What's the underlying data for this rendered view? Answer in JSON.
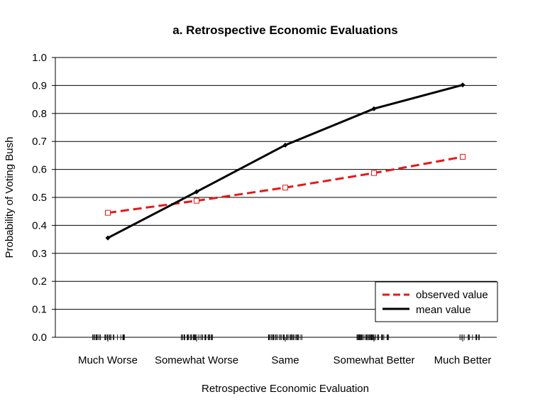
{
  "chart_data": {
    "type": "line",
    "title": "a. Retrospective Economic Evaluations",
    "xlabel": "Retrospective Economic Evaluation",
    "ylabel": "Probability of Voting Bush",
    "categories": [
      "Much Worse",
      "Somewhat Worse",
      "Same",
      "Somewhat Better",
      "Much Better"
    ],
    "ylim": [
      0.0,
      1.0
    ],
    "yticks": [
      "0.0",
      "0.1",
      "0.2",
      "0.3",
      "0.4",
      "0.5",
      "0.6",
      "0.7",
      "0.8",
      "0.9",
      "1.0"
    ],
    "grid": true,
    "legend_position": "bottom-right",
    "series": [
      {
        "name": "observed value",
        "values": [
          0.445,
          0.488,
          0.535,
          0.587,
          0.645
        ],
        "color": "#e31a1c",
        "style": "dashed",
        "marker": "open-square"
      },
      {
        "name": "mean value",
        "values": [
          0.355,
          0.52,
          0.687,
          0.817,
          0.902
        ],
        "color": "#000000",
        "style": "solid",
        "marker": "diamond"
      }
    ],
    "rug": "tick marks along y = 0 showing observation density per category"
  }
}
